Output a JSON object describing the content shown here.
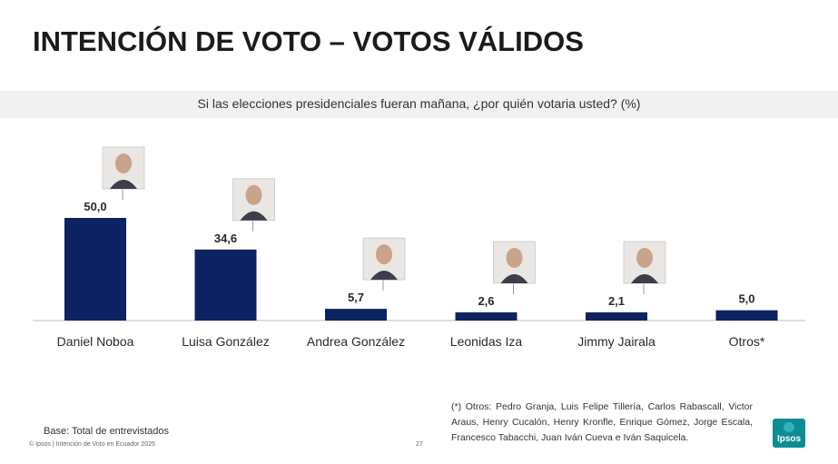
{
  "title": "INTENCIÓN DE VOTO – VOTOS VÁLIDOS",
  "subtitle": "Si las elecciones presidenciales fueran mañana, ¿por quién votaria usted? (%)",
  "chart_data": {
    "type": "bar",
    "categories": [
      "Daniel Noboa",
      "Luisa González",
      "Andrea González",
      "Leonidas Iza",
      "Jimmy Jairala",
      "Otros*"
    ],
    "values": [
      50.0,
      34.6,
      5.7,
      2.6,
      2.1,
      5.0
    ],
    "value_labels": [
      "50,0",
      "34,6",
      "5,7",
      "2,6",
      "2,1",
      "5,0"
    ],
    "bar_color": "#0d2260",
    "portraits": [
      "portrait-icon",
      "portrait-icon",
      "portrait-icon",
      "portrait-icon",
      "portrait-icon",
      null
    ]
  },
  "footnote": "(*) Otros: Pedro Granja, Luis Felipe Tillería, Carlos Rabascall, Victor Araus, Henry Cucalón, Henry Kronfle, Enrique Gómez, Jorge Escala, Francesco Tabacchi, Juan Iván Cueva e Iván Saquicela.",
  "base": "Base: Total de entrevistados",
  "copyright": "© Ipsos | Intención de Voto en Ecuador 2025",
  "page_number": "27",
  "logo_text": "Ipsos"
}
